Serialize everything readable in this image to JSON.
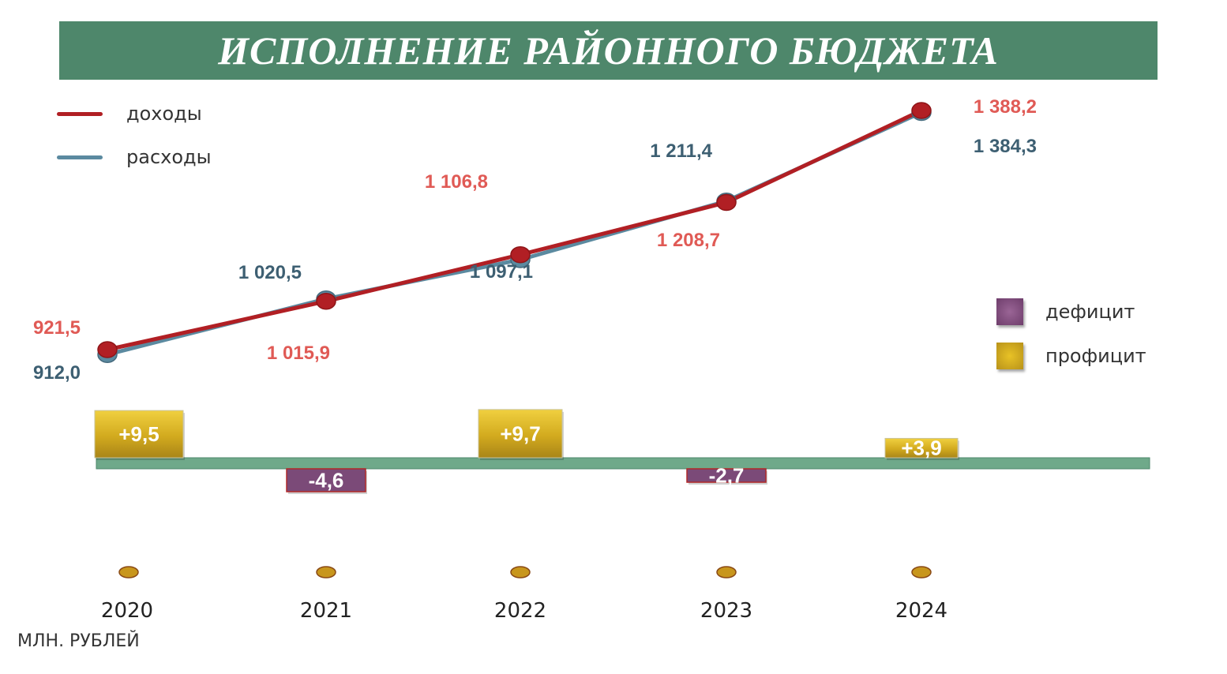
{
  "title": "ИСПОЛНЕНИЕ РАЙОННОГО БЮДЖЕТА",
  "unit": "МЛН. РУБЛЕЙ",
  "legend": {
    "lines": [
      {
        "label": "доходы",
        "color": "#b11f24"
      },
      {
        "label": "расходы",
        "color": "#5b8aa0"
      }
    ],
    "boxes": [
      {
        "label": "дефицит",
        "color": "#7b4a78"
      },
      {
        "label": "профицит",
        "color": "#d8b020"
      }
    ]
  },
  "chart_data": {
    "type": "line",
    "categories": [
      "2020",
      "2021",
      "2022",
      "2023",
      "2024"
    ],
    "series": [
      {
        "name": "доходы",
        "color": "#b11f24",
        "label_color": "#e05a55",
        "values": [
          921.5,
          1015.9,
          1106.8,
          1208.7,
          1388.2
        ],
        "labels": [
          "921,5",
          "1 015,9",
          "1 106,8",
          "1 208,7",
          "1 388,2"
        ]
      },
      {
        "name": "расходы",
        "color": "#5b8aa0",
        "label_color": "#3d5f72",
        "values": [
          912.0,
          1020.5,
          1097.1,
          1211.4,
          1384.3
        ],
        "labels": [
          "912,0",
          "1 020,5",
          "1 097,1",
          "1 211,4",
          "1 384,3"
        ]
      }
    ],
    "balance": {
      "values": [
        9.5,
        -4.6,
        9.7,
        -2.7,
        3.9
      ],
      "labels": [
        "+9,5",
        "-4,6",
        "+9,7",
        "-2,7",
        "+3,9"
      ],
      "surplus_color": "#d8b020",
      "deficit_color": "#7b4a78"
    }
  }
}
